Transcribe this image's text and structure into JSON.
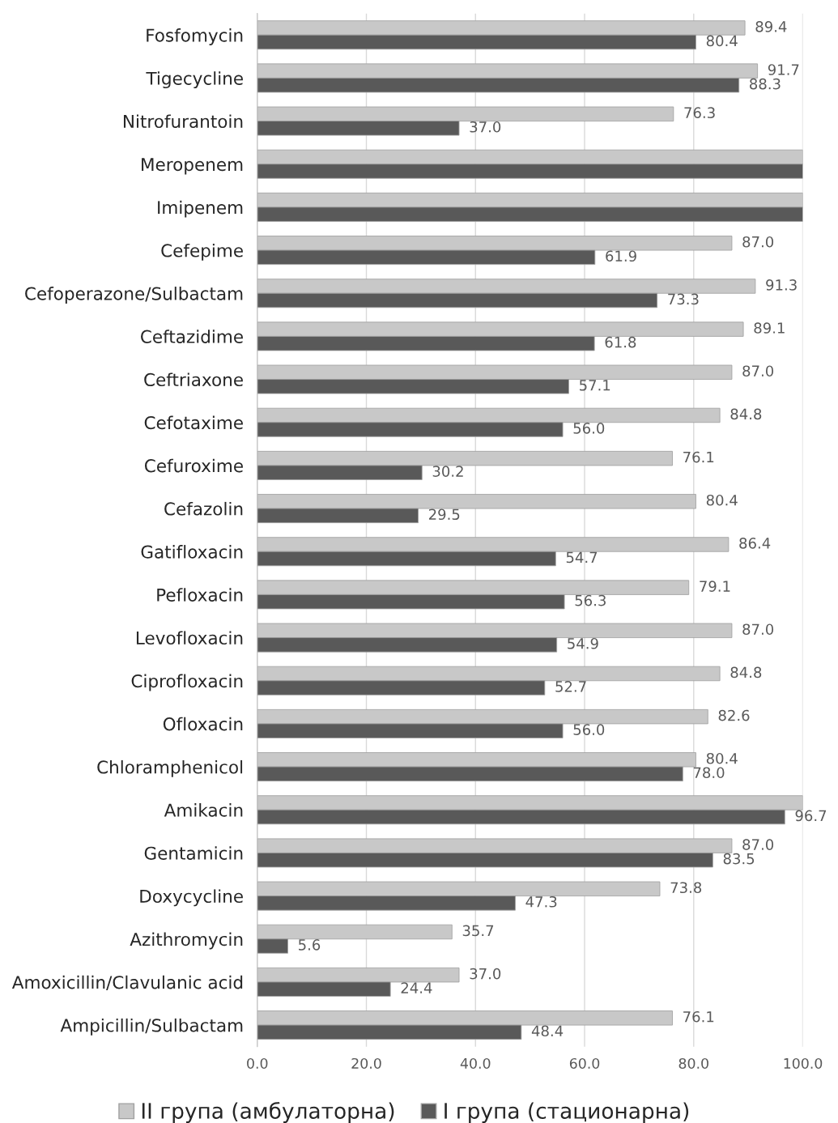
{
  "chart_data": {
    "type": "bar",
    "orientation": "horizontal",
    "categories": [
      "Fosfomycin",
      "Tigecycline",
      "Nitrofurantoin",
      "Meropenem",
      "Imipenem",
      "Cefepime",
      "Cefoperazone/Sulbactam",
      "Ceftazidime",
      "Ceftriaxone",
      "Cefotaxime",
      "Cefuroxime",
      "Cefazolin",
      "Gatifloxacin",
      "Pefloxacin",
      "Levofloxacin",
      "Ciprofloxacin",
      "Ofloxacin",
      "Chloramphenicol",
      "Amikacin",
      "Gentamicin",
      "Doxycycline",
      "Azithromycin",
      "Amoxicillin/Clavulanic acid",
      "Ampicillin/Sulbactam"
    ],
    "series": [
      {
        "name": "II група (амбулаторна)",
        "color": "#c8c8c8",
        "values": [
          89.4,
          91.7,
          76.3,
          100,
          100,
          87.0,
          91.3,
          89.1,
          87.0,
          84.8,
          76.1,
          80.4,
          86.4,
          79.1,
          87.0,
          84.8,
          82.6,
          80.4,
          100,
          87.0,
          73.8,
          35.7,
          37.0,
          76.1
        ],
        "value_labels": [
          "89.4",
          "91.7",
          "76.3",
          null,
          null,
          "87.0",
          "91.3",
          "89.1",
          "87.0",
          "84.8",
          "76.1",
          "80.4",
          "86.4",
          "79.1",
          "87.0",
          "84.8",
          "82.6",
          "80.4",
          null,
          "87.0",
          "73.8",
          "35.7",
          "37.0",
          "76.1"
        ]
      },
      {
        "name": "I група (стационарна)",
        "color": "#595959",
        "values": [
          80.4,
          88.3,
          37.0,
          100,
          100,
          61.9,
          73.3,
          61.8,
          57.1,
          56.0,
          30.2,
          29.5,
          54.7,
          56.3,
          54.9,
          52.7,
          56.0,
          78.0,
          96.7,
          83.5,
          47.3,
          5.6,
          24.4,
          48.4
        ],
        "value_labels": [
          "80.4",
          "88.3",
          "37.0",
          null,
          null,
          "61.9",
          "73.3",
          "61.8",
          "57.1",
          "56.0",
          "30.2",
          "29.5",
          "54.7",
          "56.3",
          "54.9",
          "52.7",
          "56.0",
          "78.0",
          "96.7",
          "83.5",
          "47.3",
          "5.6",
          "24.4",
          "48.4"
        ]
      }
    ],
    "xlim": [
      0,
      100
    ],
    "xticks": [
      {
        "value": 0,
        "label": "0.0"
      },
      {
        "value": 20,
        "label": "20.0"
      },
      {
        "value": 40,
        "label": "40.0"
      },
      {
        "value": 60,
        "label": "60.0"
      },
      {
        "value": 80,
        "label": "80.0"
      },
      {
        "value": 100,
        "label": "100.0"
      }
    ],
    "grid": "x",
    "legend": "bottom"
  }
}
